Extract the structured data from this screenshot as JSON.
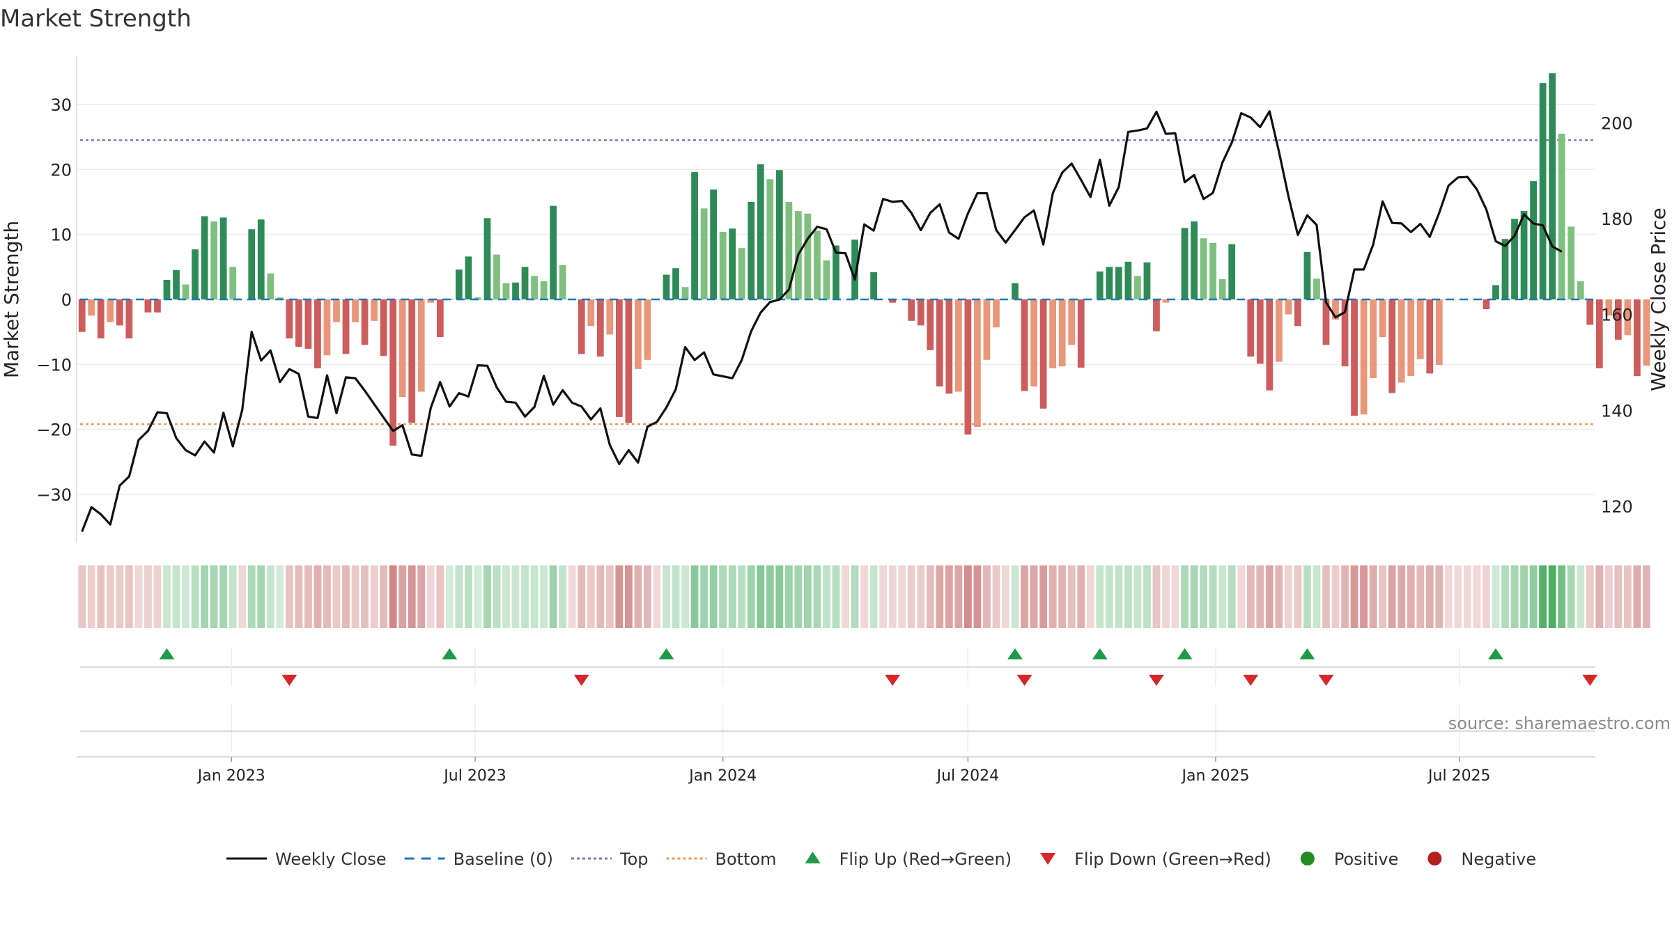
{
  "chart_data": {
    "type": "bar",
    "title": "Market Strength",
    "ylabel_left": "Market Strength",
    "ylabel_right": "Weekly Close Price",
    "source": "source: sharemaestro.com",
    "x_start": "2022-09-12",
    "week_days": 7,
    "x_range": [
      "2022-09-08",
      "2025-10-10"
    ],
    "ylim_left": [
      -37.5,
      37.5
    ],
    "ylim_right": [
      112.3,
      214.0
    ],
    "yticks_left": [
      -30,
      -20,
      -10,
      0,
      10,
      20,
      30
    ],
    "yticks_right": [
      120,
      140,
      160,
      180,
      200
    ],
    "top_level": 24.5,
    "bottom_level": -19.2,
    "x_ticks": [
      {
        "date": "2023-01-01",
        "label": "Jan 2023"
      },
      {
        "date": "2023-07-01",
        "label": "Jul 2023"
      },
      {
        "date": "2024-01-01",
        "label": "Jan 2024"
      },
      {
        "date": "2024-07-01",
        "label": "Jul 2024"
      },
      {
        "date": "2025-01-01",
        "label": "Jan 2025"
      },
      {
        "date": "2025-07-01",
        "label": "Jul 2025"
      }
    ],
    "series": [
      {
        "name": "Market Strength",
        "values": [
          -5,
          -2.5,
          -6,
          -3.5,
          -4,
          -6,
          0,
          -2,
          -2,
          3,
          4.5,
          2.3,
          7.7,
          12.8,
          12,
          12.6,
          5,
          0,
          10.8,
          12.3,
          4,
          0.3,
          -6,
          -7.3,
          -7.6,
          -10.6,
          -8.6,
          -3.5,
          -8.4,
          -3.5,
          -7,
          -3.3,
          -8.7,
          -22.5,
          -15,
          -19,
          -14.2,
          -0.5,
          -5.8,
          0.1,
          4.6,
          6.6,
          0.3,
          12.5,
          6.9,
          2.5,
          2.6,
          5,
          3.6,
          2.8,
          14.4,
          5.3,
          0,
          -8.4,
          -4.1,
          -8.8,
          -5.4,
          -18.1,
          -19,
          -10.7,
          -9.3,
          0,
          3.8,
          4.8,
          1.9,
          19.6,
          14,
          16.9,
          10.4,
          10.9,
          7.9,
          15,
          20.8,
          18.5,
          19.9,
          15,
          13.6,
          13.2,
          10.6,
          6,
          8.3,
          0,
          9.2,
          0,
          4.2,
          0,
          -0.5,
          0,
          -3.3,
          -4,
          -7.8,
          -13.4,
          -14.5,
          -14.2,
          -20.8,
          -19.6,
          -9.3,
          -4.3,
          0,
          2.5,
          -14.1,
          -13.4,
          -16.8,
          -10.6,
          -10.3,
          -7,
          -10.5,
          0,
          4.3,
          5,
          5,
          5.8,
          3.6,
          5.7,
          -4.9,
          -0.5,
          0,
          11,
          12,
          9.4,
          8.7,
          3.1,
          8.5,
          0,
          -8.8,
          -9.9,
          -14,
          -9.6,
          -2.3,
          -4.1,
          7.3,
          3.2,
          -7,
          -3.1,
          -10.3,
          -17.9,
          -17.7,
          -12.1,
          -5.8,
          -14.4,
          -12.8,
          -11.8,
          -9.2,
          -11.4,
          -10.1,
          0,
          0,
          0,
          0,
          -1.5,
          2.2,
          9.3,
          12.4,
          13.6,
          18.2,
          33.3,
          34.8,
          25.5,
          11.2,
          2.8,
          -3.9,
          -10.6,
          -2.5,
          -6.2,
          -5.5,
          -11.8,
          -10.2
        ]
      },
      {
        "name": "Weekly Close",
        "values": [
          114.7,
          119.8,
          118.3,
          116.2,
          124.3,
          126.2,
          133.8,
          135.7,
          139.6,
          139.4,
          134.2,
          131.7,
          130.6,
          133.5,
          131.2,
          139.5,
          132.5,
          140.1,
          156.4,
          150.4,
          152.5,
          145.9,
          148.6,
          147.6,
          138.7,
          138.4,
          147.3,
          139.4,
          146.9,
          146.7,
          144.1,
          141.3,
          138.5,
          135.7,
          136.9,
          130.8,
          130.5,
          140.5,
          145.9,
          140.8,
          143.6,
          142.9,
          149.4,
          149.3,
          144.8,
          141.8,
          141.6,
          138.7,
          140.7,
          147.2,
          141.2,
          144.2,
          141.6,
          140.8,
          138.1,
          140.4,
          132.8,
          128.8,
          131.7,
          129.1,
          136.6,
          137.6,
          140.6,
          144.4,
          153.2,
          150.5,
          152.1,
          147.5,
          147.1,
          146.7,
          150.5,
          156.5,
          160.4,
          162.6,
          163.1,
          165.2,
          172.5,
          175.8,
          178.3,
          177.8,
          172.9,
          172.8,
          167.3,
          178.8,
          177.5,
          184.1,
          183.5,
          183.7,
          181.2,
          177.6,
          181.2,
          183,
          177.1,
          175.8,
          181.1,
          185.3,
          185.3,
          177.6,
          175,
          177.6,
          180.3,
          181.7,
          174.6,
          185.3,
          189.6,
          191.5,
          188.1,
          184.5,
          192.3,
          182.7,
          186.6,
          198.1,
          198.4,
          198.8,
          202.3,
          197.7,
          197.8,
          187.6,
          189.1,
          184.1,
          185.4,
          191.7,
          195.9,
          202,
          201.1,
          199.1,
          202.4,
          194,
          184.7,
          176.6,
          180.7,
          178.7,
          162.5,
          159.4,
          160.5,
          169.4,
          169.4,
          174.6,
          183.6,
          179.1,
          179,
          177.2,
          178.9,
          176.2,
          181.2,
          186.9,
          188.6,
          188.7,
          186.1,
          181.9,
          175.3,
          174.3,
          176.4,
          180.9,
          179,
          178.6,
          174.2,
          173.1
        ]
      }
    ],
    "legend": [
      {
        "label": "Weekly Close",
        "color": "#111111",
        "style": "solid-line"
      },
      {
        "label": "Baseline (0)",
        "color": "#1f77b4",
        "style": "dashed-line"
      },
      {
        "label": "Top",
        "color": "#9467bd",
        "style": "dotted-line"
      },
      {
        "label": "Bottom",
        "color": "#e39b5b",
        "style": "dotted-line"
      },
      {
        "label": "Flip Up (Red→Green)",
        "color": "#1f9a4a",
        "style": "triangle-up"
      },
      {
        "label": "Flip Down (Green→Red)",
        "color": "#d62728",
        "style": "triangle-down"
      },
      {
        "label": "Positive",
        "color": "#228b22",
        "style": "dot"
      },
      {
        "label": "Negative",
        "color": "#b22222",
        "style": "dot"
      }
    ],
    "grid": true,
    "legend_placement": "bottom-center",
    "colors": {
      "strong_positive": "#2e8b57",
      "weak_positive": "#7fbf7f",
      "strong_negative": "#cd5c5c",
      "weak_negative": "#e9967a",
      "close_line": "#111111",
      "top_line": "#9467bd",
      "bottom_line": "#e39b5b",
      "baseline": "#1f77b4",
      "flip_up": "#1f9a4a",
      "flip_down": "#d62728"
    }
  }
}
